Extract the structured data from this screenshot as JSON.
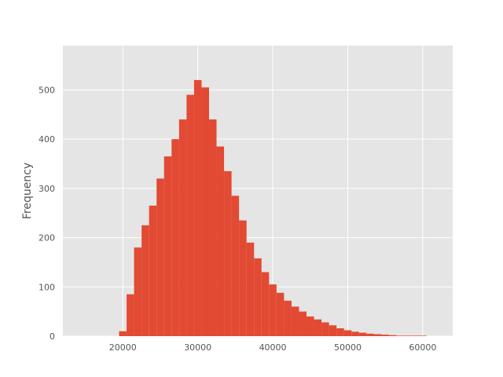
{
  "chart_data": {
    "type": "bar",
    "title": "",
    "xlabel": "",
    "ylabel": "Frequency",
    "xlim": [
      12000,
      64000
    ],
    "ylim": [
      0,
      590
    ],
    "xticks": [
      20000,
      30000,
      40000,
      50000,
      60000
    ],
    "yticks": [
      0,
      100,
      200,
      300,
      400,
      500
    ],
    "xtick_labels": [
      "20000",
      "30000",
      "40000",
      "50000",
      "60000"
    ],
    "ytick_labels": [
      "0",
      "100",
      "200",
      "300",
      "400",
      "500"
    ],
    "grid": true,
    "legend": "none",
    "colors": {
      "bar": "#e24a33",
      "background": "#e5e5e5",
      "grid": "#ffffff",
      "text": "#555555"
    },
    "series": [
      {
        "bin_start": 19500,
        "bin_width": 1000,
        "values": [
          10,
          85,
          180,
          225,
          265,
          320,
          365,
          400,
          440,
          490,
          520,
          505,
          440,
          385,
          335,
          285,
          235,
          190,
          158,
          130,
          105,
          88,
          72,
          60,
          50,
          40,
          34,
          28,
          22,
          16,
          12,
          9,
          7,
          5,
          4,
          3,
          2,
          1,
          1,
          1,
          1,
          0
        ]
      }
    ]
  }
}
